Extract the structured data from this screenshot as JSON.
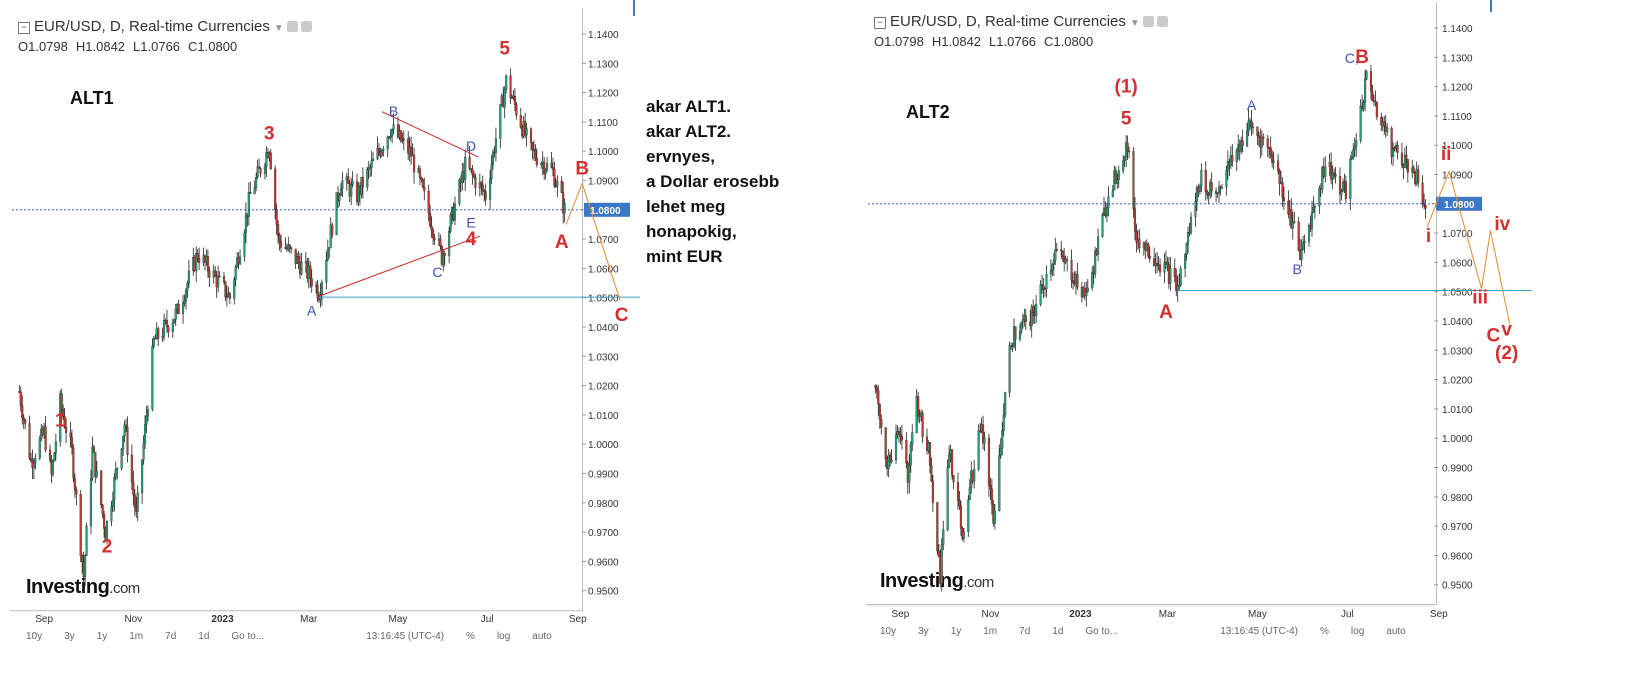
{
  "comment_lines": [
    "akar ALT1.",
    "akar ALT2.",
    "ervnyes,",
    "a Dollar erosebb",
    "lehet meg",
    "honapokig,",
    "mint EUR"
  ],
  "colors": {
    "up": "#26a07b",
    "down": "#c0392b",
    "wave_red": "#d32f2f",
    "wave_blue": "#3f51b5",
    "trend": "#c62828",
    "projection": "#e08a2e",
    "support": "#3aa0c8",
    "price_line": "#2244aa",
    "price_badge": "#3c78c8"
  },
  "chart_data": [
    {
      "type": "candlestick",
      "header": {
        "title": "EUR/USD, D, Real-time Currencies",
        "open": "O1.0798",
        "high": "H1.0842",
        "low": "L1.0766",
        "close": "C1.0800"
      },
      "label": "ALT1",
      "ylim": [
        0.943,
        1.1445
      ],
      "y_ticks": [
        "1.1400",
        "1.1300",
        "1.1200",
        "1.1100",
        "1.1000",
        "1.0900",
        "1.0800",
        "1.0700",
        "1.0600",
        "1.0500",
        "1.0400",
        "1.0300",
        "1.0200",
        "1.0100",
        "1.0000",
        "0.9900",
        "0.9800",
        "0.9700",
        "0.9600",
        "0.9500"
      ],
      "x_ticks": [
        "Sep",
        "Nov",
        "2023",
        "Mar",
        "May",
        "Jul",
        "Sep"
      ],
      "last_price": "1.0800",
      "price_path": [
        [
          "2022-08-15",
          1.018
        ],
        [
          "2022-08-23",
          0.994
        ],
        [
          "2022-09-01",
          1.004
        ],
        [
          "2022-09-06",
          0.989
        ],
        [
          "2022-09-12",
          1.014
        ],
        [
          "2022-09-20",
          0.997
        ],
        [
          "2022-09-28",
          0.955
        ],
        [
          "2022-10-04",
          0.998
        ],
        [
          "2022-10-13",
          0.97
        ],
        [
          "2022-10-26",
          1.007
        ],
        [
          "2022-11-03",
          0.975
        ],
        [
          "2022-11-15",
          1.035
        ],
        [
          "2022-12-01",
          1.045
        ],
        [
          "2022-12-15",
          1.065
        ],
        [
          "2023-01-06",
          1.05
        ],
        [
          "2023-01-20",
          1.085
        ],
        [
          "2023-02-02",
          1.102
        ],
        [
          "2023-02-08",
          1.07
        ],
        [
          "2023-03-01",
          1.058
        ],
        [
          "2023-03-08",
          1.052
        ],
        [
          "2023-03-23",
          1.09
        ],
        [
          "2023-04-03",
          1.085
        ],
        [
          "2023-04-26",
          1.108
        ],
        [
          "2023-05-10",
          1.099
        ],
        [
          "2023-05-31",
          1.064
        ],
        [
          "2023-06-16",
          1.095
        ],
        [
          "2023-06-30",
          1.085
        ],
        [
          "2023-07-14",
          1.124
        ],
        [
          "2023-07-31",
          1.1
        ],
        [
          "2023-08-15",
          1.093
        ],
        [
          "2023-08-23",
          1.08
        ]
      ],
      "waves": [
        {
          "text": "1",
          "x": "2022-09-12",
          "y": 1.006,
          "color": "red"
        },
        {
          "text": "2",
          "x": "2022-10-14",
          "y": 0.963,
          "color": "red"
        },
        {
          "text": "3",
          "x": "2023-02-02",
          "y": 1.104,
          "color": "red"
        },
        {
          "text": "4",
          "x": "2023-06-20",
          "y": 1.068,
          "color": "red"
        },
        {
          "text": "5",
          "x": "2023-07-13",
          "y": 1.133,
          "color": "red"
        },
        {
          "text": "A",
          "x": "2023-03-03",
          "y": 1.044,
          "color": "blue"
        },
        {
          "text": "B",
          "x": "2023-04-28",
          "y": 1.112,
          "color": "blue"
        },
        {
          "text": "C",
          "x": "2023-05-28",
          "y": 1.057,
          "color": "blue"
        },
        {
          "text": "D",
          "x": "2023-06-20",
          "y": 1.1,
          "color": "blue"
        },
        {
          "text": "E",
          "x": "2023-06-20",
          "y": 1.074,
          "color": "blue"
        },
        {
          "text": "A",
          "x": "2023-08-21",
          "y": 1.067,
          "color": "red"
        },
        {
          "text": "B",
          "x": "2023-09-04",
          "y": 1.092,
          "color": "red"
        },
        {
          "text": "C",
          "x": "2023-10-01",
          "y": 1.042,
          "color": "red"
        }
      ],
      "projection": [
        [
          "2023-08-24",
          1.075
        ],
        [
          "2023-09-04",
          1.089
        ],
        [
          "2023-09-30",
          1.049
        ]
      ]
    },
    {
      "type": "candlestick",
      "header": {
        "title": "EUR/USD, D, Real-time Currencies",
        "open": "O1.0798",
        "high": "H1.0842",
        "low": "L1.0766",
        "close": "C1.0800"
      },
      "label": "ALT2",
      "ylim": [
        0.9445,
        1.1445
      ],
      "y_ticks": [
        "1.1400",
        "1.1300",
        "1.1200",
        "1.1100",
        "1.1000",
        "1.0900",
        "1.0800",
        "1.0700",
        "1.0600",
        "1.0500",
        "1.0400",
        "1.0300",
        "1.0200",
        "1.0100",
        "1.0000",
        "0.9900",
        "0.9800",
        "0.9700",
        "0.9600",
        "0.9500"
      ],
      "x_ticks": [
        "Sep",
        "Nov",
        "2023",
        "Mar",
        "May",
        "Jul",
        "Sep"
      ],
      "last_price": "1.0800",
      "waves": [
        {
          "text": "(1)",
          "x": "2023-02-01",
          "y": 1.118,
          "color": "red"
        },
        {
          "text": "5",
          "x": "2023-02-01",
          "y": 1.107,
          "color": "red"
        },
        {
          "text": "A",
          "x": "2023-02-28",
          "y": 1.041,
          "color": "red"
        },
        {
          "text": "A",
          "x": "2023-04-27",
          "y": 1.112,
          "color": "blue"
        },
        {
          "text": "B",
          "x": "2023-05-28",
          "y": 1.056,
          "color": "blue"
        },
        {
          "text": "C,",
          "x": "2023-07-04",
          "y": 1.128,
          "color": "blue"
        },
        {
          "text": "B",
          "x": "2023-07-11",
          "y": 1.128,
          "color": "red"
        },
        {
          "text": "i",
          "x": "2023-08-25",
          "y": 1.067,
          "color": "red"
        },
        {
          "text": "ii",
          "x": "2023-09-06",
          "y": 1.095,
          "color": "red"
        },
        {
          "text": "iii",
          "x": "2023-09-29",
          "y": 1.046,
          "color": "red"
        },
        {
          "text": "iv",
          "x": "2023-10-14",
          "y": 1.071,
          "color": "red"
        },
        {
          "text": "C",
          "x": "2023-10-08",
          "y": 1.033,
          "color": "red"
        },
        {
          "text": "v",
          "x": "2023-10-17",
          "y": 1.035,
          "color": "red"
        },
        {
          "text": "(2)",
          "x": "2023-10-17",
          "y": 1.027,
          "color": "red"
        }
      ],
      "projection": [
        [
          "2023-08-24",
          1.072
        ],
        [
          "2023-09-08",
          1.091
        ],
        [
          "2023-09-30",
          1.051
        ],
        [
          "2023-10-06",
          1.071
        ],
        [
          "2023-10-19",
          1.039
        ]
      ]
    }
  ],
  "toolbar": [
    "10y",
    "3y",
    "1y",
    "1m",
    "7d",
    "1d",
    "Go to...",
    "13:16:45 (UTC-4)",
    "%",
    "log",
    "auto"
  ],
  "logo": {
    "name": "Investing",
    "suffix": ".com"
  }
}
